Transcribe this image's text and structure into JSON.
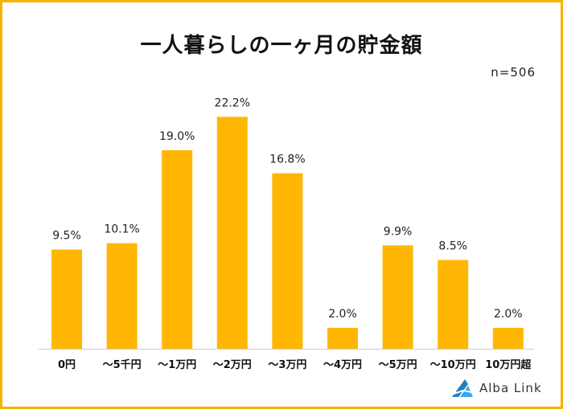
{
  "chart_data": {
    "type": "bar",
    "title": "一人暮らしの一ヶ月の貯金額",
    "sample_size": "n=506",
    "categories": [
      "0円",
      "〜5千円",
      "〜1万円",
      "〜2万円",
      "〜3万円",
      "〜4万円",
      "〜5万円",
      "〜10万円",
      "10万円超"
    ],
    "values": [
      9.5,
      10.1,
      19.0,
      22.2,
      16.8,
      2.0,
      9.9,
      8.5,
      2.0
    ],
    "value_labels": [
      "9.5%",
      "10.1%",
      "19.0%",
      "22.2%",
      "16.8%",
      "2.0%",
      "9.9%",
      "8.5%",
      "2.0%"
    ],
    "xlabel": "",
    "ylabel": "",
    "ylim": [
      0,
      25
    ],
    "grid": false,
    "bar_color": "#ffb703"
  },
  "branding": {
    "logo_text": "Alba Link",
    "logo_color": "#1e7fc8"
  },
  "colors": {
    "border": "#f5b400",
    "axis": "#cccccc"
  }
}
